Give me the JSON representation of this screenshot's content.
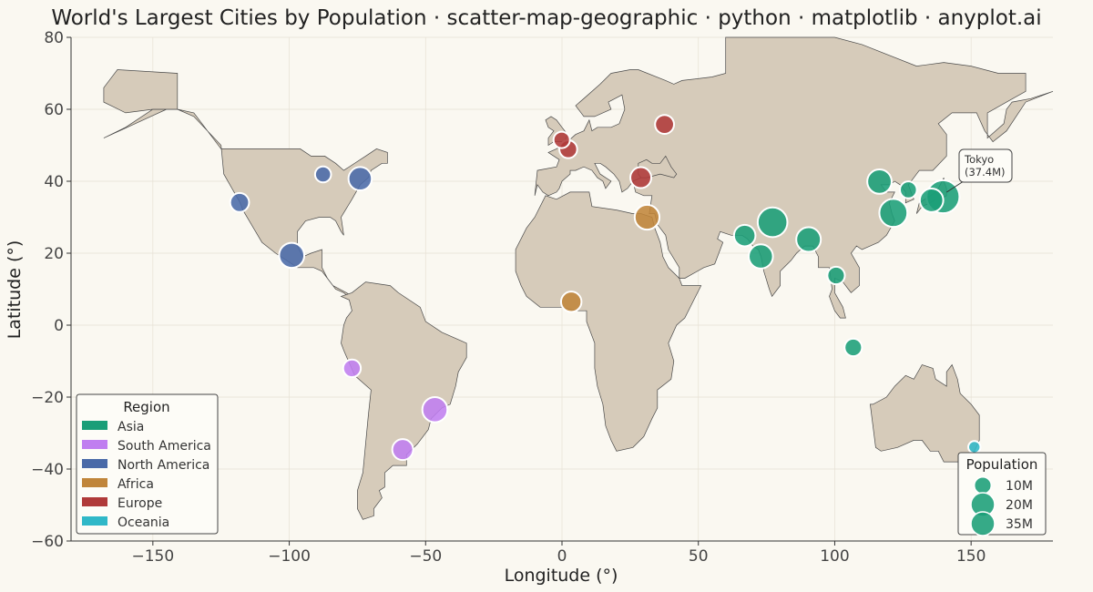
{
  "chart_data": {
    "type": "scatter",
    "title": "World's Largest Cities by Population · scatter-map-geographic · python · matplotlib · anyplot.ai",
    "xlabel": "Longitude (°)",
    "ylabel": "Latitude (°)",
    "xlim": [
      -180,
      180
    ],
    "ylim": [
      -60,
      80
    ],
    "xticks": [
      -150,
      -100,
      -50,
      0,
      50,
      100,
      150
    ],
    "yticks": [
      80,
      60,
      40,
      20,
      0,
      -20,
      -40,
      -60
    ],
    "grid": true,
    "legend_placement": "lower-left",
    "size_legend_placement": "lower-right",
    "legend_title": "Region",
    "size_legend_title": "Population",
    "regions": [
      {
        "name": "Asia",
        "color": "#1a9e78"
      },
      {
        "name": "South America",
        "color": "#c07ef0"
      },
      {
        "name": "North America",
        "color": "#4a6aa8"
      },
      {
        "name": "Africa",
        "color": "#c0853a"
      },
      {
        "name": "Europe",
        "color": "#b03a3a"
      },
      {
        "name": "Oceania",
        "color": "#30b8c8"
      }
    ],
    "size_legend": [
      {
        "label": "10M",
        "value": 10
      },
      {
        "label": "20M",
        "value": 20
      },
      {
        "label": "35M",
        "value": 35
      }
    ],
    "annotation": {
      "line1": "Tokyo",
      "line2": "(37.4M)",
      "lon": 139.7,
      "lat": 35.7
    },
    "points": [
      {
        "lon": 139.7,
        "lat": 35.7,
        "pop": 37.4,
        "region": "Asia"
      },
      {
        "lon": 77.2,
        "lat": 28.6,
        "pop": 30.3,
        "region": "Asia"
      },
      {
        "lon": 121.5,
        "lat": 31.2,
        "pop": 27.1,
        "region": "Asia"
      },
      {
        "lon": 90.4,
        "lat": 23.8,
        "pop": 21.0,
        "region": "Asia"
      },
      {
        "lon": 116.4,
        "lat": 39.9,
        "pop": 20.5,
        "region": "Asia"
      },
      {
        "lon": 72.9,
        "lat": 19.1,
        "pop": 20.4,
        "region": "Asia"
      },
      {
        "lon": 135.5,
        "lat": 34.7,
        "pop": 19.2,
        "region": "Asia"
      },
      {
        "lon": 67.0,
        "lat": 24.9,
        "pop": 16.1,
        "region": "Asia"
      },
      {
        "lon": 100.5,
        "lat": 13.8,
        "pop": 10.5,
        "region": "Asia"
      },
      {
        "lon": 127.0,
        "lat": 37.6,
        "pop": 9.9,
        "region": "Asia"
      },
      {
        "lon": 106.8,
        "lat": -6.2,
        "pop": 10.6,
        "region": "Asia"
      },
      {
        "lon": -46.6,
        "lat": -23.5,
        "pop": 22.0,
        "region": "South America"
      },
      {
        "lon": -58.4,
        "lat": -34.6,
        "pop": 15.2,
        "region": "South America"
      },
      {
        "lon": -77.0,
        "lat": -12.0,
        "pop": 10.7,
        "region": "South America"
      },
      {
        "lon": -99.1,
        "lat": 19.4,
        "pop": 21.8,
        "region": "North America"
      },
      {
        "lon": -74.0,
        "lat": 40.7,
        "pop": 18.8,
        "region": "North America"
      },
      {
        "lon": -118.2,
        "lat": 34.1,
        "pop": 12.5,
        "region": "North America"
      },
      {
        "lon": -87.6,
        "lat": 41.9,
        "pop": 8.9,
        "region": "North America"
      },
      {
        "lon": 31.2,
        "lat": 30.0,
        "pop": 21.3,
        "region": "Africa"
      },
      {
        "lon": 3.4,
        "lat": 6.5,
        "pop": 14.4,
        "region": "Africa"
      },
      {
        "lon": 37.6,
        "lat": 55.8,
        "pop": 12.5,
        "region": "Europe"
      },
      {
        "lon": 28.9,
        "lat": 41.0,
        "pop": 15.2,
        "region": "Europe"
      },
      {
        "lon": 2.3,
        "lat": 48.9,
        "pop": 11.0,
        "region": "Europe"
      },
      {
        "lon": -0.1,
        "lat": 51.5,
        "pop": 9.3,
        "region": "Europe"
      },
      {
        "lon": 151.2,
        "lat": -33.9,
        "pop": 5.1,
        "region": "Oceania"
      }
    ]
  },
  "style": {
    "background": "#faf8f1",
    "land_fill": "#d6cbba",
    "land_stroke": "#4a4a4a",
    "text_color": "#222222",
    "tick_color": "#444444"
  }
}
